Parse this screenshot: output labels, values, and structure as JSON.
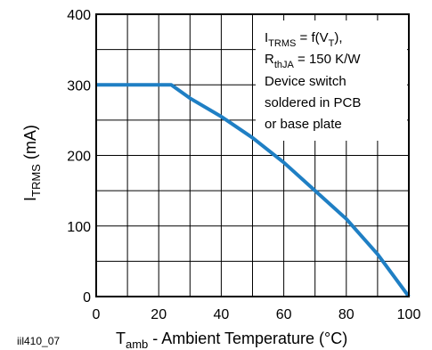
{
  "chart_data": {
    "type": "line",
    "title": "",
    "xlabel": {
      "main": "T",
      "sub": "amb",
      "rest": " - Ambient Temperature (°C)"
    },
    "ylabel": {
      "main": "I",
      "sub": "TRMS",
      "rest": " (mA)"
    },
    "xlim": [
      0,
      100
    ],
    "ylim": [
      0,
      400
    ],
    "x_ticks": [
      0,
      20,
      40,
      60,
      80,
      100
    ],
    "y_ticks": [
      0,
      100,
      200,
      300,
      400
    ],
    "x_grid": [
      10,
      20,
      30,
      40,
      50,
      60,
      70,
      80,
      90
    ],
    "y_grid": [
      50,
      100,
      150,
      200,
      250,
      300,
      350
    ],
    "grid": true,
    "line_color": "#1f7fc4",
    "series": [
      {
        "x": [
          0,
          24,
          30,
          40,
          50,
          60,
          70,
          80,
          90,
          95,
          100
        ],
        "y": [
          300,
          300,
          281,
          255,
          225,
          190,
          150,
          110,
          60,
          30,
          0
        ]
      }
    ],
    "annotation": {
      "line1": {
        "main": "I",
        "sub": "TRMS",
        "mid": " = f(V",
        "sub2": "T",
        "end": "),",
        "pos": "top-right"
      },
      "line2": {
        "main": "R",
        "sub": "thJA",
        "rest": " = 150 K/W"
      },
      "line3": "Device switch",
      "line4": "soldered in PCB",
      "line5": "or base plate"
    },
    "figure_id": "iil410_07"
  }
}
